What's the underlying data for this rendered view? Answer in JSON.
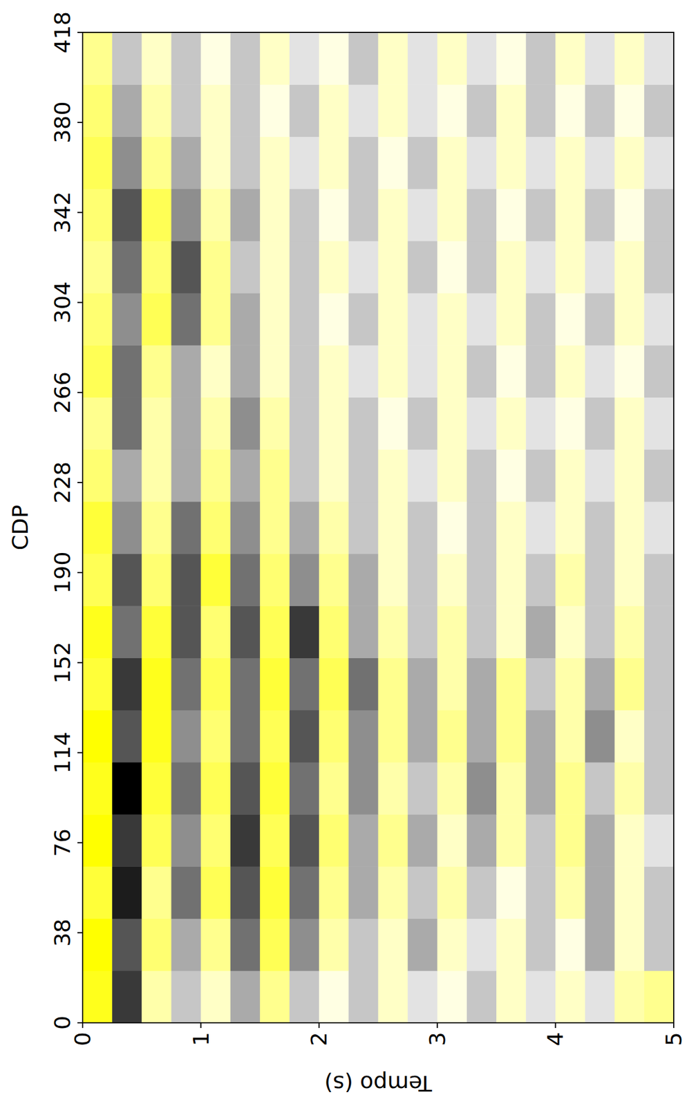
{
  "chart_data": {
    "type": "heatmap",
    "xlabel": "Tempo (s)",
    "ylabel": "CDP",
    "xlim": [
      0,
      5
    ],
    "ylim": [
      0,
      418
    ],
    "xticks": [
      0,
      1,
      2,
      3,
      4,
      5
    ],
    "yticks": [
      0,
      38,
      76,
      114,
      152,
      190,
      228,
      266,
      304,
      342,
      380,
      418
    ],
    "x_edges": [
      0,
      0.25,
      0.5,
      0.75,
      1,
      1.25,
      1.5,
      1.75,
      2,
      2.25,
      2.5,
      2.75,
      3,
      3.25,
      3.5,
      3.75,
      4,
      4.25,
      4.5,
      4.75,
      5
    ],
    "y_edges": [
      0,
      22,
      44,
      66,
      88,
      110,
      132,
      154,
      176,
      198,
      220,
      242,
      264,
      286,
      308,
      330,
      352,
      374,
      396,
      418
    ],
    "zlim": [
      -9,
      9
    ],
    "cells": [
      [
        8,
        -7,
        3,
        -2,
        2,
        -3,
        4,
        -2,
        1,
        -2,
        2,
        -1,
        1,
        -2,
        2,
        -1,
        2,
        -1,
        3,
        4
      ],
      [
        9,
        -6,
        5,
        -3,
        4,
        -5,
        6,
        -4,
        3,
        -2,
        2,
        -3,
        2,
        -1,
        2,
        -2,
        1,
        -3,
        2,
        -2
      ],
      [
        7,
        -8,
        4,
        -5,
        6,
        -6,
        7,
        -5,
        4,
        -3,
        3,
        -2,
        3,
        -2,
        1,
        -2,
        3,
        -3,
        2,
        -2
      ],
      [
        9,
        -7,
        6,
        -4,
        5,
        -7,
        6,
        -6,
        5,
        -3,
        4,
        -3,
        2,
        -3,
        3,
        -2,
        4,
        -3,
        2,
        -1
      ],
      [
        8,
        -9,
        7,
        -5,
        6,
        -6,
        7,
        -5,
        4,
        -4,
        3,
        -2,
        3,
        -4,
        3,
        -3,
        4,
        -2,
        3,
        -2
      ],
      [
        9,
        -6,
        8,
        -4,
        5,
        -5,
        6,
        -6,
        5,
        -4,
        4,
        -3,
        4,
        -3,
        4,
        -3,
        3,
        -4,
        2,
        -2
      ],
      [
        7,
        -7,
        8,
        -5,
        6,
        -5,
        7,
        -5,
        6,
        -5,
        4,
        -3,
        3,
        -3,
        4,
        -2,
        3,
        -3,
        4,
        -2
      ],
      [
        8,
        -5,
        7,
        -6,
        5,
        -6,
        6,
        -7,
        5,
        -3,
        3,
        -2,
        3,
        -2,
        2,
        -3,
        2,
        -2,
        3,
        -2
      ],
      [
        6,
        -6,
        5,
        -6,
        7,
        -5,
        5,
        -4,
        4,
        -3,
        2,
        -2,
        2,
        -2,
        2,
        -2,
        3,
        -2,
        2,
        -2
      ],
      [
        7,
        -4,
        4,
        -5,
        5,
        -4,
        4,
        -3,
        3,
        -2,
        2,
        -2,
        1,
        -2,
        2,
        -1,
        2,
        -2,
        2,
        -1
      ],
      [
        5,
        -3,
        3,
        -3,
        4,
        -3,
        4,
        -2,
        2,
        -2,
        2,
        -1,
        2,
        -2,
        1,
        -2,
        2,
        -1,
        2,
        -2
      ],
      [
        4,
        -5,
        3,
        -3,
        3,
        -4,
        3,
        -2,
        2,
        -2,
        1,
        -2,
        2,
        -1,
        2,
        -1,
        1,
        -2,
        2,
        -1
      ],
      [
        6,
        -5,
        4,
        -3,
        2,
        -3,
        2,
        -2,
        2,
        -1,
        2,
        -1,
        2,
        -2,
        1,
        -2,
        2,
        -1,
        1,
        -2
      ],
      [
        5,
        -4,
        6,
        -5,
        4,
        -3,
        2,
        -2,
        1,
        -2,
        2,
        -1,
        2,
        -1,
        2,
        -2,
        1,
        -2,
        2,
        -1
      ],
      [
        4,
        -5,
        5,
        -6,
        4,
        -2,
        2,
        -2,
        2,
        -1,
        2,
        -2,
        1,
        -2,
        2,
        -1,
        2,
        -1,
        2,
        -2
      ],
      [
        5,
        -6,
        6,
        -4,
        3,
        -3,
        2,
        -2,
        1,
        -2,
        2,
        -1,
        2,
        -2,
        1,
        -2,
        2,
        -2,
        1,
        -2
      ],
      [
        6,
        -4,
        4,
        -3,
        2,
        -2,
        2,
        -1,
        2,
        -2,
        1,
        -2,
        2,
        -1,
        2,
        -1,
        2,
        -1,
        2,
        -1
      ],
      [
        5,
        -3,
        3,
        -2,
        2,
        -2,
        1,
        -2,
        2,
        -1,
        2,
        -1,
        1,
        -2,
        2,
        -2,
        1,
        -2,
        1,
        -2
      ],
      [
        4,
        -2,
        2,
        -2,
        1,
        -2,
        2,
        -1,
        1,
        -2,
        2,
        -1,
        2,
        -1,
        1,
        -2,
        2,
        -1,
        2,
        -1
      ]
    ]
  }
}
